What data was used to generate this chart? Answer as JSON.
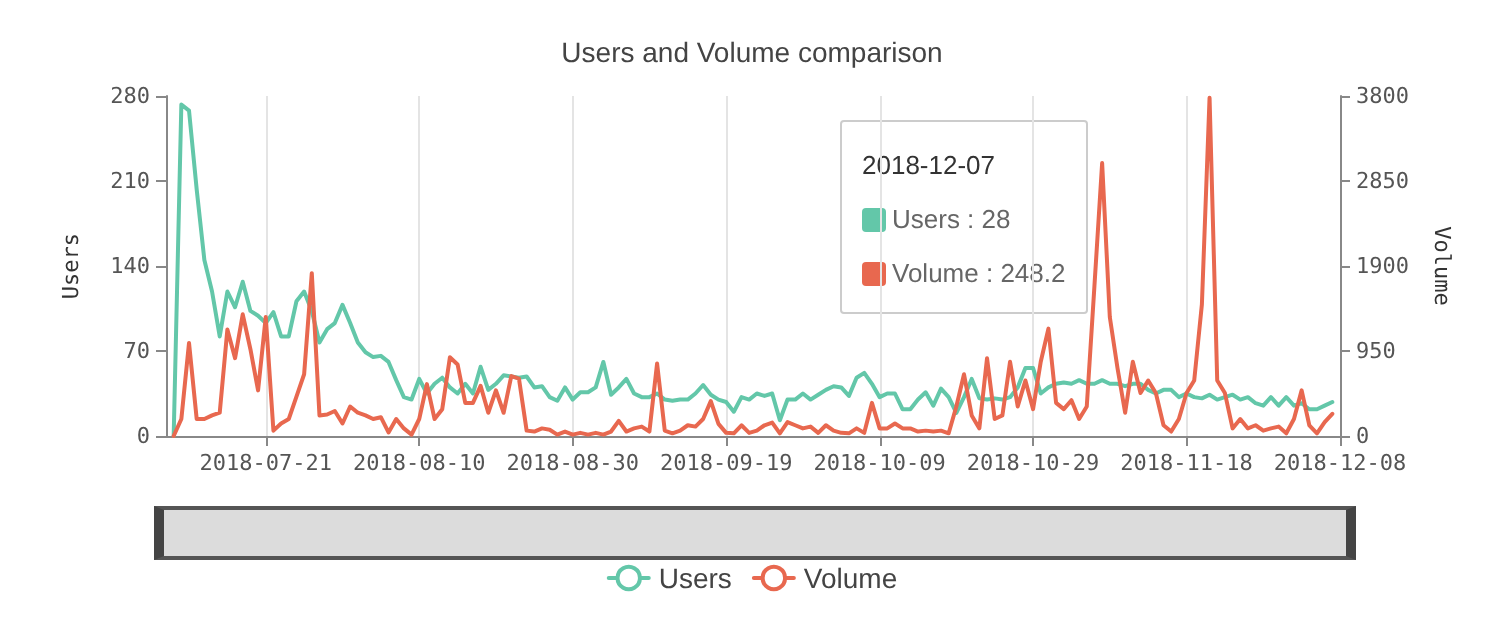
{
  "chart_data": {
    "type": "line",
    "title": "Users and Volume comparison",
    "ylabel": "Users",
    "y2label": "Volume",
    "x": [
      "2018-07-09",
      "2018-07-10",
      "2018-07-11",
      "2018-07-12",
      "2018-07-13",
      "2018-07-14",
      "2018-07-15",
      "2018-07-16",
      "2018-07-17",
      "2018-07-18",
      "2018-07-19",
      "2018-07-20",
      "2018-07-21",
      "2018-07-22",
      "2018-07-23",
      "2018-07-24",
      "2018-07-25",
      "2018-07-26",
      "2018-07-27",
      "2018-07-28",
      "2018-07-29",
      "2018-07-30",
      "2018-07-31",
      "2018-08-01",
      "2018-08-02",
      "2018-08-03",
      "2018-08-04",
      "2018-08-05",
      "2018-08-06",
      "2018-08-07",
      "2018-08-08",
      "2018-08-09",
      "2018-08-10",
      "2018-08-11",
      "2018-08-12",
      "2018-08-13",
      "2018-08-14",
      "2018-08-15",
      "2018-08-16",
      "2018-08-17",
      "2018-08-18",
      "2018-08-19",
      "2018-08-20",
      "2018-08-21",
      "2018-08-22",
      "2018-08-23",
      "2018-08-24",
      "2018-08-25",
      "2018-08-26",
      "2018-08-27",
      "2018-08-28",
      "2018-08-29",
      "2018-08-30",
      "2018-08-31",
      "2018-09-01",
      "2018-09-02",
      "2018-09-03",
      "2018-09-04",
      "2018-09-05",
      "2018-09-06",
      "2018-09-07",
      "2018-09-08",
      "2018-09-09",
      "2018-09-10",
      "2018-09-11",
      "2018-09-12",
      "2018-09-13",
      "2018-09-14",
      "2018-09-15",
      "2018-09-16",
      "2018-09-17",
      "2018-09-18",
      "2018-09-19",
      "2018-09-20",
      "2018-09-21",
      "2018-09-22",
      "2018-09-23",
      "2018-09-24",
      "2018-09-25",
      "2018-09-26",
      "2018-09-27",
      "2018-09-28",
      "2018-09-29",
      "2018-09-30",
      "2018-10-01",
      "2018-10-02",
      "2018-10-03",
      "2018-10-04",
      "2018-10-05",
      "2018-10-06",
      "2018-10-07",
      "2018-10-08",
      "2018-10-09",
      "2018-10-10",
      "2018-10-11",
      "2018-10-12",
      "2018-10-13",
      "2018-10-14",
      "2018-10-15",
      "2018-10-16",
      "2018-10-17",
      "2018-10-18",
      "2018-10-19",
      "2018-10-20",
      "2018-10-21",
      "2018-10-22",
      "2018-10-23",
      "2018-10-24",
      "2018-10-25",
      "2018-10-26",
      "2018-10-27",
      "2018-10-28",
      "2018-10-29",
      "2018-10-30",
      "2018-10-31",
      "2018-11-01",
      "2018-11-02",
      "2018-11-03",
      "2018-11-04",
      "2018-11-05",
      "2018-11-06",
      "2018-11-07",
      "2018-11-08",
      "2018-11-09",
      "2018-11-10",
      "2018-11-11",
      "2018-11-12",
      "2018-11-13",
      "2018-11-14",
      "2018-11-15",
      "2018-11-16",
      "2018-11-17",
      "2018-11-18",
      "2018-11-19",
      "2018-11-20",
      "2018-11-21",
      "2018-11-22",
      "2018-11-23",
      "2018-11-24",
      "2018-11-25",
      "2018-11-26",
      "2018-11-27",
      "2018-11-28",
      "2018-11-29",
      "2018-11-30",
      "2018-12-01",
      "2018-12-02",
      "2018-12-03",
      "2018-12-04",
      "2018-12-05",
      "2018-12-06",
      "2018-12-07"
    ],
    "series": [
      {
        "name": "Users",
        "color": "#63c7a9",
        "values": [
          0,
          273,
          268,
          203,
          145,
          119,
          82,
          119,
          106,
          127,
          103,
          99,
          93,
          102,
          82,
          82,
          111,
          119,
          103,
          77,
          88,
          93,
          108,
          93,
          77,
          69,
          65,
          66,
          61,
          46,
          32,
          30,
          47,
          35,
          43,
          48,
          40,
          35,
          43,
          35,
          57,
          38,
          43,
          50,
          49,
          48,
          49,
          40,
          41,
          32,
          29,
          40,
          30,
          36,
          36,
          40,
          61,
          34,
          40,
          47,
          35,
          32,
          32,
          35,
          30,
          29,
          30,
          30,
          35,
          42,
          34,
          30,
          28,
          20,
          32,
          30,
          35,
          33,
          35,
          13,
          30,
          30,
          35,
          30,
          34,
          38,
          41,
          40,
          33,
          48,
          52,
          43,
          32,
          35,
          35,
          22,
          22,
          30,
          36,
          25,
          39,
          32,
          19,
          32,
          47,
          31,
          30,
          31,
          30,
          32,
          40,
          56,
          56,
          35,
          40,
          43,
          44,
          43,
          46,
          43,
          43,
          46,
          43,
          43,
          41,
          43,
          43,
          38,
          35,
          38,
          38,
          32,
          35,
          32,
          31,
          34,
          30,
          32,
          34,
          30,
          32,
          27,
          25,
          32,
          25,
          32,
          25,
          27,
          22,
          22,
          25,
          28
        ]
      },
      {
        "name": "Volume",
        "color": "#e8684f",
        "axis": "y2",
        "values": [
          0,
          190,
          1040,
          190,
          190,
          230,
          260,
          1190,
          870,
          1360,
          970,
          510,
          1330,
          60,
          140,
          190,
          440,
          690,
          1820,
          230,
          240,
          280,
          140,
          330,
          260,
          230,
          190,
          210,
          40,
          190,
          85,
          15,
          190,
          580,
          190,
          300,
          880,
          800,
          370,
          370,
          560,
          260,
          510,
          260,
          670,
          640,
          60,
          50,
          85,
          70,
          15,
          50,
          15,
          35,
          15,
          35,
          15,
          50,
          170,
          50,
          85,
          105,
          50,
          810,
          60,
          30,
          60,
          120,
          105,
          190,
          390,
          135,
          35,
          30,
          120,
          35,
          60,
          120,
          150,
          30,
          155,
          120,
          85,
          105,
          35,
          120,
          60,
          35,
          30,
          85,
          35,
          370,
          85,
          85,
          140,
          85,
          85,
          50,
          60,
          50,
          60,
          30,
          330,
          690,
          230,
          85,
          870,
          190,
          230,
          830,
          330,
          620,
          300,
          830,
          1200,
          370,
          300,
          400,
          190,
          330,
          1680,
          3050,
          1330,
          760,
          260,
          830,
          480,
          620,
          480,
          120,
          50,
          190,
          480,
          620,
          1470,
          3780,
          620,
          480,
          85,
          190,
          85,
          120,
          60,
          85,
          105,
          30,
          190,
          510,
          120,
          30,
          155,
          248.2
        ]
      }
    ],
    "xlim": [
      "2018-07-08",
      "2018-12-08"
    ],
    "xticks": [
      "2018-07-21",
      "2018-08-10",
      "2018-08-30",
      "2018-09-19",
      "2018-10-09",
      "2018-10-29",
      "2018-11-18",
      "2018-12-08"
    ],
    "ylim": [
      0,
      280
    ],
    "yticks": [
      0,
      70,
      140,
      210,
      280
    ],
    "y2lim": [
      0,
      3800
    ],
    "y2ticks": [
      0,
      950,
      1900,
      2850,
      3800
    ],
    "grid": "x",
    "legend": "bottom",
    "marker": "none",
    "line_style": "solid",
    "annotations": [
      "2018-12-07",
      "Users : 28",
      "Volume : 248.2"
    ]
  }
}
